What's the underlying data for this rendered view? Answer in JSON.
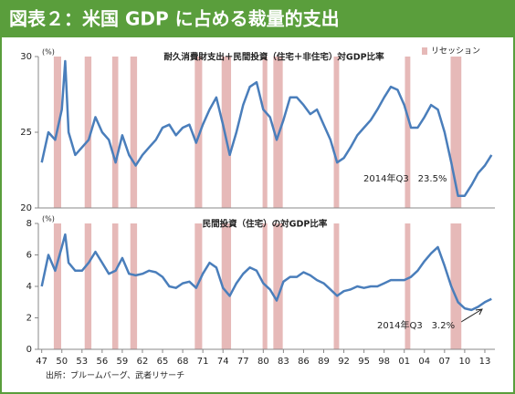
{
  "title": "図表２：米国 GDP に占める裁量的支出",
  "source": "出所：ブルームバーグ、武者リサーチ",
  "legend": {
    "label": "リセッション",
    "color": "#e6b9b8",
    "position": "top-right"
  },
  "chart_data": [
    {
      "type": "line",
      "title": "耐久消費財支出＋民間投資（住宅＋非住宅）対GDP比率",
      "y_unit": "(%)",
      "annotation": "2014年Q3　23.5%",
      "color": "#4a7ebb",
      "xlim": [
        1946.5,
        2014.5
      ],
      "ylim": [
        20,
        30
      ],
      "yticks": [
        20,
        25,
        30
      ],
      "recessions": [
        [
          1948.8,
          1949.9
        ],
        [
          1953.4,
          1954.4
        ],
        [
          1957.5,
          1958.4
        ],
        [
          1960.2,
          1961.2
        ],
        [
          1969.8,
          1970.9
        ],
        [
          1973.8,
          1975.2
        ],
        [
          1979.9,
          1980.6
        ],
        [
          1981.5,
          1982.9
        ],
        [
          1990.5,
          1991.3
        ],
        [
          2001.1,
          2001.9
        ],
        [
          2007.9,
          2009.5
        ]
      ],
      "x": [
        1947,
        1948,
        1949,
        1950,
        1950.5,
        1951,
        1952,
        1953,
        1954,
        1955,
        1956,
        1957,
        1958,
        1959,
        1960,
        1961,
        1962,
        1963,
        1964,
        1965,
        1966,
        1967,
        1968,
        1969,
        1970,
        1971,
        1972,
        1973,
        1974,
        1975,
        1976,
        1977,
        1978,
        1979,
        1980,
        1981,
        1982,
        1983,
        1984,
        1985,
        1986,
        1987,
        1988,
        1989,
        1990,
        1991,
        1992,
        1993,
        1994,
        1995,
        1996,
        1997,
        1998,
        1999,
        2000,
        2001,
        2002,
        2003,
        2004,
        2005,
        2006,
        2007,
        2008,
        2009,
        2010,
        2011,
        2012,
        2013,
        2014
      ],
      "values": [
        23.0,
        25.0,
        24.5,
        26.5,
        29.7,
        25.0,
        23.5,
        24.0,
        24.5,
        26.0,
        25.0,
        24.5,
        23.0,
        24.8,
        23.5,
        22.8,
        23.5,
        24.0,
        24.5,
        25.3,
        25.5,
        24.8,
        25.3,
        25.5,
        24.3,
        25.5,
        26.5,
        27.3,
        25.5,
        23.5,
        25.0,
        26.8,
        28.0,
        28.3,
        26.5,
        26.0,
        24.5,
        25.8,
        27.3,
        27.3,
        26.8,
        26.2,
        26.5,
        25.5,
        24.5,
        23.0,
        23.3,
        24.0,
        24.8,
        25.3,
        25.8,
        26.5,
        27.3,
        28.0,
        27.8,
        26.8,
        25.3,
        25.3,
        26.0,
        26.8,
        26.5,
        25.0,
        23.0,
        20.8,
        20.8,
        21.5,
        22.3,
        22.8,
        23.5
      ]
    },
    {
      "type": "line",
      "title": "民間投資（住宅）の対GDP比率",
      "y_unit": "(%)",
      "annotation": "2014年Q3　3.2%",
      "color": "#4a7ebb",
      "xlim": [
        1946.5,
        2014.5
      ],
      "ylim": [
        0,
        8
      ],
      "yticks": [
        0,
        2,
        4,
        6,
        8
      ],
      "xticks": [
        {
          "value": 1947,
          "label": "47"
        },
        {
          "value": 1950,
          "label": "50"
        },
        {
          "value": 1953,
          "label": "53"
        },
        {
          "value": 1956,
          "label": "56"
        },
        {
          "value": 1959,
          "label": "59"
        },
        {
          "value": 1962,
          "label": "62"
        },
        {
          "value": 1965,
          "label": "65"
        },
        {
          "value": 1968,
          "label": "68"
        },
        {
          "value": 1971,
          "label": "71"
        },
        {
          "value": 1974,
          "label": "74"
        },
        {
          "value": 1977,
          "label": "77"
        },
        {
          "value": 1980,
          "label": "80"
        },
        {
          "value": 1983,
          "label": "83"
        },
        {
          "value": 1986,
          "label": "86"
        },
        {
          "value": 1989,
          "label": "89"
        },
        {
          "value": 1992,
          "label": "92"
        },
        {
          "value": 1995,
          "label": "95"
        },
        {
          "value": 1998,
          "label": "98"
        },
        {
          "value": 2001,
          "label": "01"
        },
        {
          "value": 2004,
          "label": "04"
        },
        {
          "value": 2007,
          "label": "07"
        },
        {
          "value": 2010,
          "label": "10"
        },
        {
          "value": 2013,
          "label": "13"
        }
      ],
      "recessions": [
        [
          1948.8,
          1949.9
        ],
        [
          1953.4,
          1954.4
        ],
        [
          1957.5,
          1958.4
        ],
        [
          1960.2,
          1961.2
        ],
        [
          1969.8,
          1970.9
        ],
        [
          1973.8,
          1975.2
        ],
        [
          1979.9,
          1980.6
        ],
        [
          1981.5,
          1982.9
        ],
        [
          1990.5,
          1991.3
        ],
        [
          2001.1,
          2001.9
        ],
        [
          2007.9,
          2009.5
        ]
      ],
      "x": [
        1947,
        1948,
        1949,
        1950,
        1950.5,
        1951,
        1952,
        1953,
        1954,
        1955,
        1956,
        1957,
        1958,
        1959,
        1960,
        1961,
        1962,
        1963,
        1964,
        1965,
        1966,
        1967,
        1968,
        1969,
        1970,
        1971,
        1972,
        1973,
        1974,
        1975,
        1976,
        1977,
        1978,
        1979,
        1980,
        1981,
        1982,
        1983,
        1984,
        1985,
        1986,
        1987,
        1988,
        1989,
        1990,
        1991,
        1992,
        1993,
        1994,
        1995,
        1996,
        1997,
        1998,
        1999,
        2000,
        2001,
        2002,
        2003,
        2004,
        2005,
        2006,
        2007,
        2008,
        2009,
        2010,
        2011,
        2012,
        2013,
        2014
      ],
      "values": [
        4.0,
        6.0,
        5.0,
        6.5,
        7.3,
        5.5,
        5.0,
        5.0,
        5.5,
        6.2,
        5.5,
        4.8,
        5.0,
        5.8,
        4.8,
        4.7,
        4.8,
        5.0,
        4.9,
        4.6,
        4.0,
        3.9,
        4.2,
        4.3,
        3.9,
        4.8,
        5.5,
        5.2,
        3.9,
        3.4,
        4.2,
        4.8,
        5.2,
        5.0,
        4.2,
        3.8,
        3.1,
        4.3,
        4.6,
        4.6,
        4.9,
        4.7,
        4.4,
        4.2,
        3.8,
        3.4,
        3.7,
        3.8,
        4.0,
        3.9,
        4.0,
        4.0,
        4.2,
        4.4,
        4.4,
        4.4,
        4.6,
        5.0,
        5.6,
        6.1,
        6.5,
        5.3,
        4.0,
        3.0,
        2.6,
        2.5,
        2.7,
        3.0,
        3.2
      ]
    }
  ]
}
